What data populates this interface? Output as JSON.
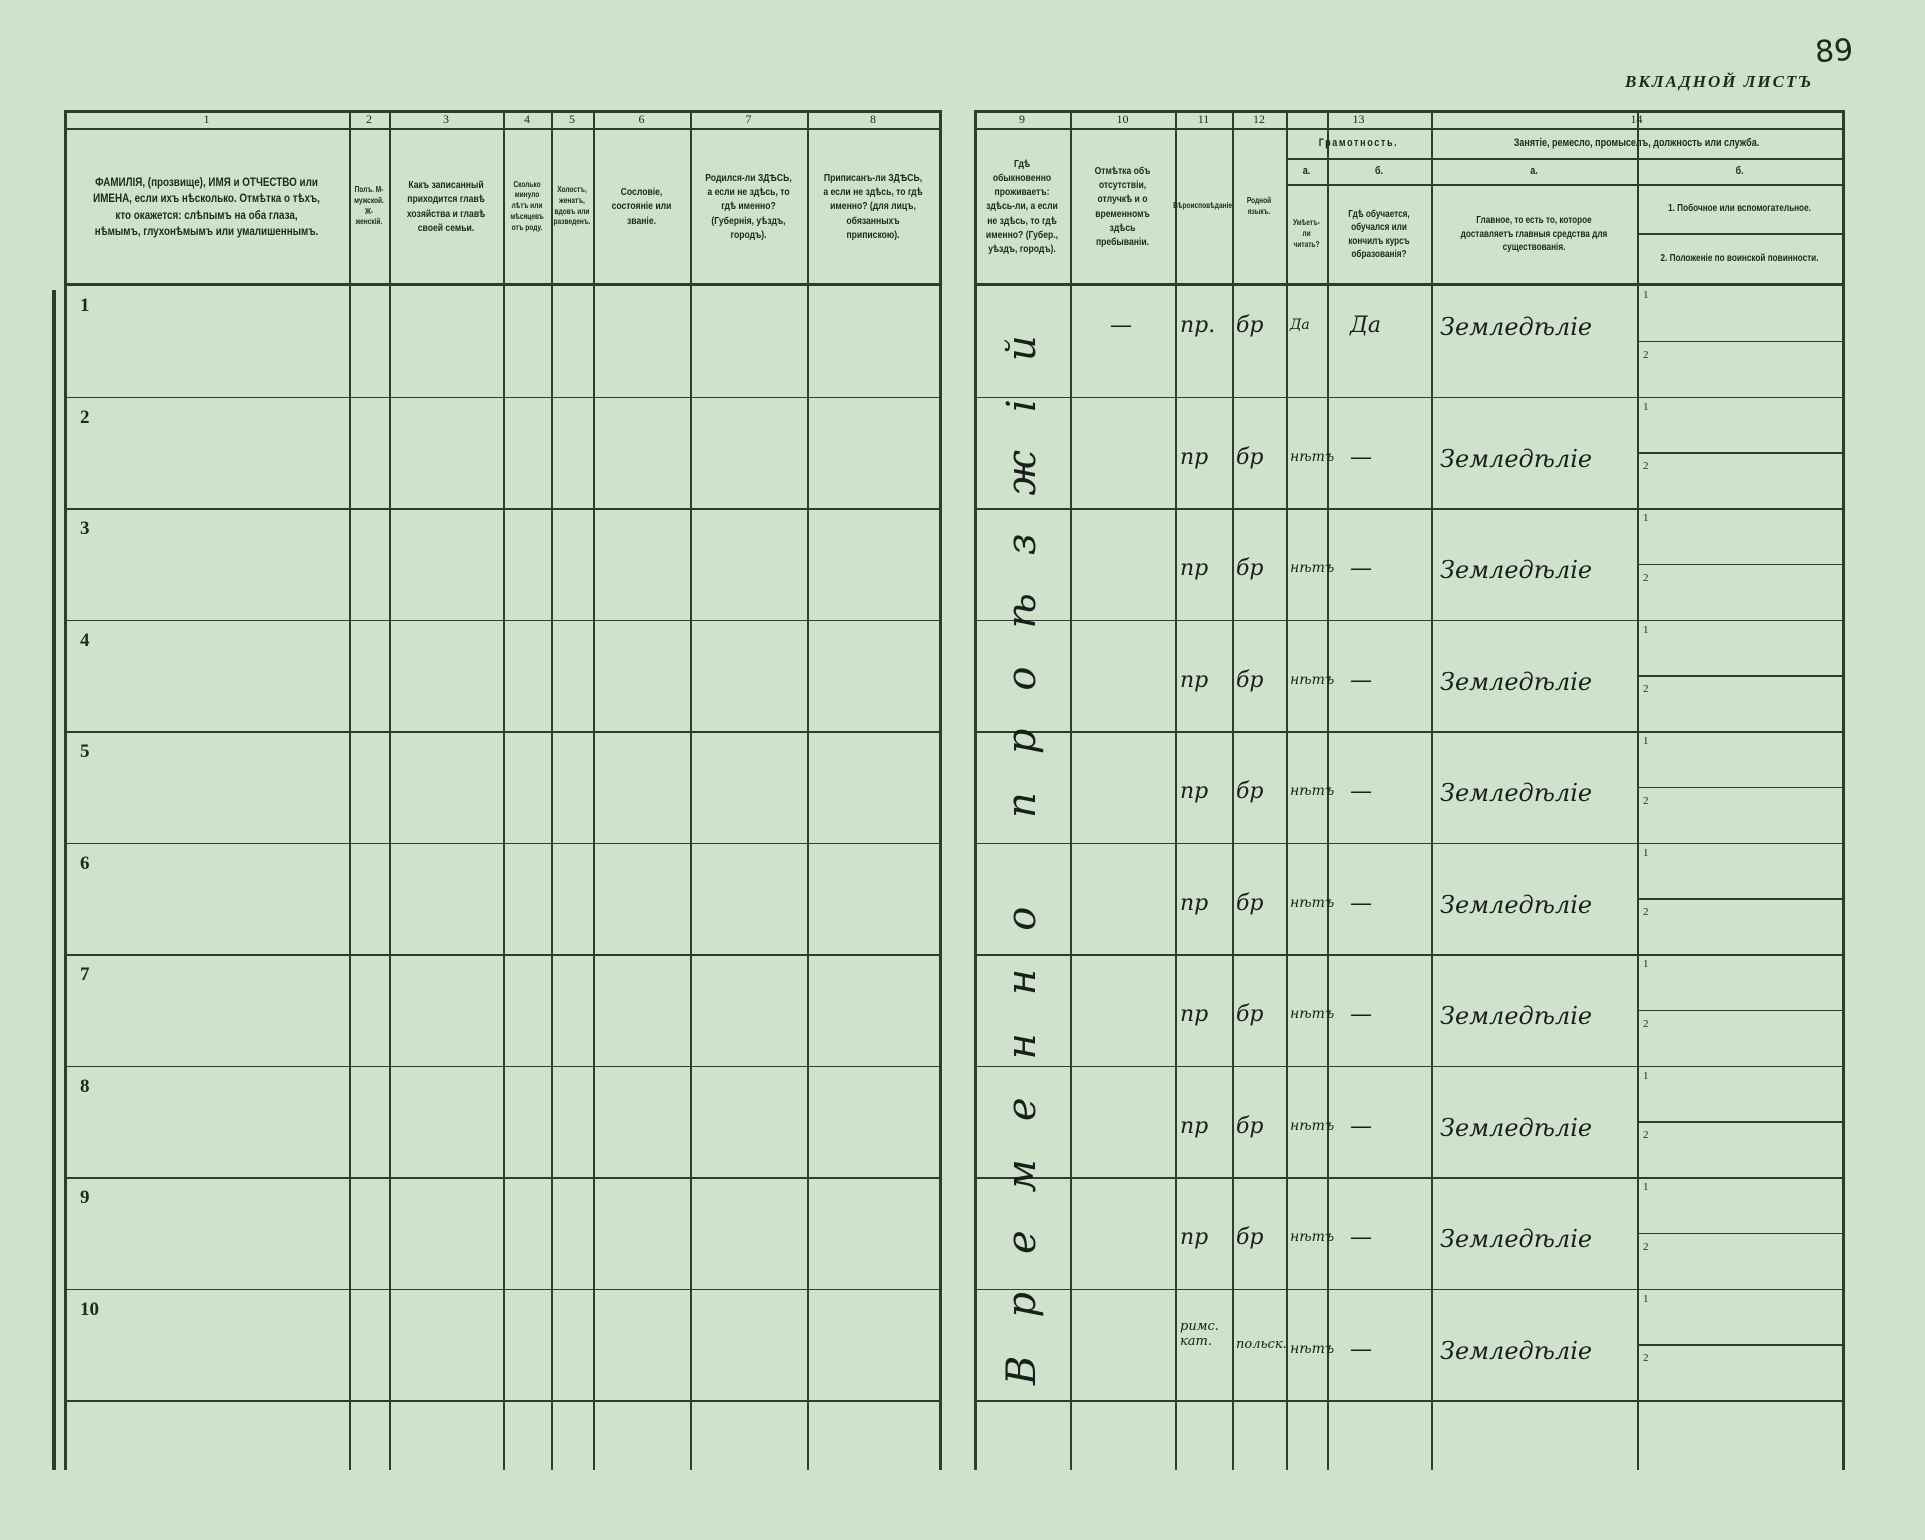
{
  "page_number": "89",
  "sheet_title": "ВКЛАДНОЙ ЛИСТЪ",
  "columns": [
    {
      "num": "1",
      "text": "ФАМИЛІЯ, (прозвище), ИМЯ и ОТЧЕСТВО или ИМЕНА, если ихъ нѣсколько. Отмѣтка о тѣхъ, кто окажется: слѣпымъ на оба глаза, нѣмымъ, глухонѣмымъ или умалишеннымъ."
    },
    {
      "num": "2",
      "text": "Полъ. М-мужской. Ж-женскій."
    },
    {
      "num": "3",
      "text": "Какъ записанный приходится главѣ хозяйства и главѣ своей семьи."
    },
    {
      "num": "4",
      "text": "Сколько минуло лѣтъ или мѣсяцевъ отъ роду."
    },
    {
      "num": "5",
      "text": "Холостъ, женатъ, вдовъ или разведенъ."
    },
    {
      "num": "6",
      "text": "Сословіе, состояніе или званіе."
    },
    {
      "num": "7",
      "text": "Родился-ли ЗДѢСЬ, а если не здѣсь, то гдѣ именно? (Губернія, уѣздъ, городъ)."
    },
    {
      "num": "8",
      "text": "Приписанъ-ли ЗДѢСЬ, а если не здѣсь, то гдѣ именно? (для лицъ, обязанныхъ припискою)."
    },
    {
      "num": "9",
      "text": "Гдѣ обыкновенно проживаетъ: здѣсь-ли, а если не здѣсь, то гдѣ именно? (Губер., уѣздъ, городъ)."
    },
    {
      "num": "10",
      "text": "Отмѣтка объ отсутствіи, отлучкѣ и о временномъ здѣсь пребываніи."
    },
    {
      "num": "11",
      "text": "Вѣроисповѣданіе."
    },
    {
      "num": "12",
      "text": "Родной языкъ."
    },
    {
      "num": "13",
      "text": "Грамотность.",
      "a_label": "а.",
      "a_text": "Умѣетъ-ли читать?",
      "b_label": "б.",
      "b_text": "Гдѣ обучается, обучался или кончилъ курсъ образованія?"
    },
    {
      "num": "14",
      "text": "Занятіе, ремесло, промыселъ, должность или служба.",
      "a_label": "а.",
      "a_text": "Главное, то есть то, которое доставляетъ главныя средства для существованія.",
      "b_label": "б.",
      "b1_text": "1. Побочное или вспомогательное.",
      "b2_text": "2. Положеніе по воинской повинности."
    }
  ],
  "residence_note": "Временно проѣзжій",
  "sub_labels": [
    "1",
    "2"
  ],
  "rows": [
    {
      "n": "1",
      "absence": "—",
      "religion": "пр.",
      "language": "бр",
      "lit_a": "Да",
      "lit_b": "Да",
      "occupation": "Земледѣліе"
    },
    {
      "n": "2",
      "absence": "",
      "religion": "пр",
      "language": "бр",
      "lit_a": "нѣтъ",
      "lit_b": "—",
      "occupation": "Земледѣліе"
    },
    {
      "n": "3",
      "absence": "",
      "religion": "пр",
      "language": "бр",
      "lit_a": "нѣтъ",
      "lit_b": "—",
      "occupation": "Земледѣліе"
    },
    {
      "n": "4",
      "absence": "",
      "religion": "пр",
      "language": "бр",
      "lit_a": "нѣтъ",
      "lit_b": "—",
      "occupation": "Земледѣліе"
    },
    {
      "n": "5",
      "absence": "",
      "religion": "пр",
      "language": "бр",
      "lit_a": "нѣтъ",
      "lit_b": "—",
      "occupation": "Земледѣліе"
    },
    {
      "n": "6",
      "absence": "",
      "religion": "пр",
      "language": "бр",
      "lit_a": "нѣтъ",
      "lit_b": "—",
      "occupation": "Земледѣліе"
    },
    {
      "n": "7",
      "absence": "",
      "religion": "пр",
      "language": "бр",
      "lit_a": "нѣтъ",
      "lit_b": "—",
      "occupation": "Земледѣліе"
    },
    {
      "n": "8",
      "absence": "",
      "religion": "пр",
      "language": "бр",
      "lit_a": "нѣтъ",
      "lit_b": "—",
      "occupation": "Земледѣліе"
    },
    {
      "n": "9",
      "absence": "",
      "religion": "пр",
      "language": "бр",
      "lit_a": "нѣтъ",
      "lit_b": "—",
      "occupation": "Земледѣліе"
    },
    {
      "n": "10",
      "absence": "",
      "religion": "римс. кат.",
      "language": "польск.",
      "lit_a": "нѣтъ",
      "lit_b": "—",
      "occupation": "Земледѣліе"
    }
  ]
}
